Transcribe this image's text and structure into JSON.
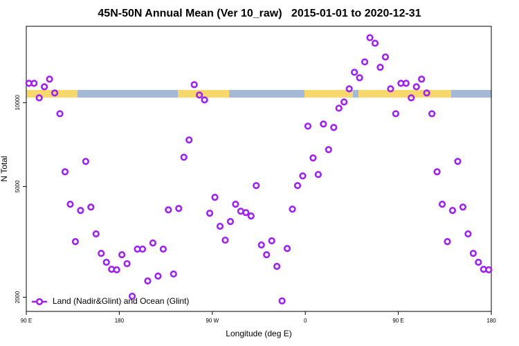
{
  "chart_data": {
    "type": "scatter",
    "title": "45N-50N Annual Mean (Ver 10_raw)   2015-01-01 to 2020-12-31",
    "xlabel": "Longitude (deg E)",
    "ylabel": "N Total",
    "yscale": "log",
    "xlim": [
      90,
      540
    ],
    "ylim": [
      1780,
      18800
    ],
    "xticks": [
      {
        "value": 90,
        "label": "90 E"
      },
      {
        "value": 180,
        "label": "180"
      },
      {
        "value": 270,
        "label": "90 W"
      },
      {
        "value": 360,
        "label": "0"
      },
      {
        "value": 450,
        "label": "90 E"
      },
      {
        "value": 540,
        "label": "180"
      }
    ],
    "yticks": [
      2000,
      5000,
      10000
    ],
    "legend": "bottom-left",
    "series": [
      {
        "name": "Land (Nadir&Glint) and Ocean (Glint)",
        "color": "#a020f0",
        "x": [
          92.5,
          97.5,
          102.5,
          107.5,
          112.5,
          117.5,
          122.5,
          127.5,
          132.5,
          137.5,
          142.5,
          147.5,
          152.5,
          157.5,
          162.5,
          167.5,
          172.5,
          177.5,
          182.5,
          187.5,
          192.5,
          197.5,
          202.5,
          207.5,
          212.5,
          217.5,
          222.5,
          227.5,
          232.5,
          237.5,
          242.5,
          247.5,
          252.5,
          257.5,
          262.5,
          267.5,
          272.5,
          277.5,
          282.5,
          287.5,
          292.5,
          297.5,
          302.5,
          307.5,
          312.5,
          317.5,
          322.5,
          327.5,
          332.5,
          337.5,
          342.5,
          347.5,
          352.5,
          357.5,
          362.5,
          367.5,
          372.5,
          377.5,
          382.5,
          387.5,
          392.5,
          397.5,
          402.5,
          407.5,
          412.5,
          417.5,
          422.5,
          427.5,
          432.5,
          437.5,
          442.5,
          447.5,
          452.5,
          457.5,
          462.5,
          467.5,
          472.5,
          477.5,
          482.5,
          487.5,
          492.5,
          497.5,
          502.5,
          507.5,
          512.5,
          517.5,
          522.5,
          527.5,
          532.5,
          537.5
        ],
        "values": [
          11735,
          11735,
          10408,
          11405,
          12143,
          10833,
          9126,
          5647,
          4318,
          3170,
          4101,
          6152,
          4218,
          3378,
          2877,
          2672,
          2522,
          2511,
          2844,
          2641,
          2018,
          2979,
          2979,
          2290,
          3134,
          2383,
          2979,
          4121,
          2425,
          4169,
          6368,
          7345,
          11601,
          10648,
          10231,
          4009,
          4571,
          3597,
          3208,
          3742,
          4318,
          4076,
          4028,
          3917,
          5037,
          3083,
          2844,
          3190,
          2582,
          1941,
          2994,
          4145,
          5037,
          5457,
          8234,
          6330,
          5520,
          8377,
          6781,
          8141,
          9553,
          10057,
          11210,
          12855,
          12284,
          14007,
          17109,
          16345,
          13392,
          14583,
          11210,
          9126,
          11735,
          11735,
          10408,
          11405,
          12143,
          10833,
          9126,
          5647,
          4318,
          3170,
          4101,
          6152,
          4218,
          3378,
          2877,
          2672,
          2522,
          2511
        ]
      }
    ]
  }
}
